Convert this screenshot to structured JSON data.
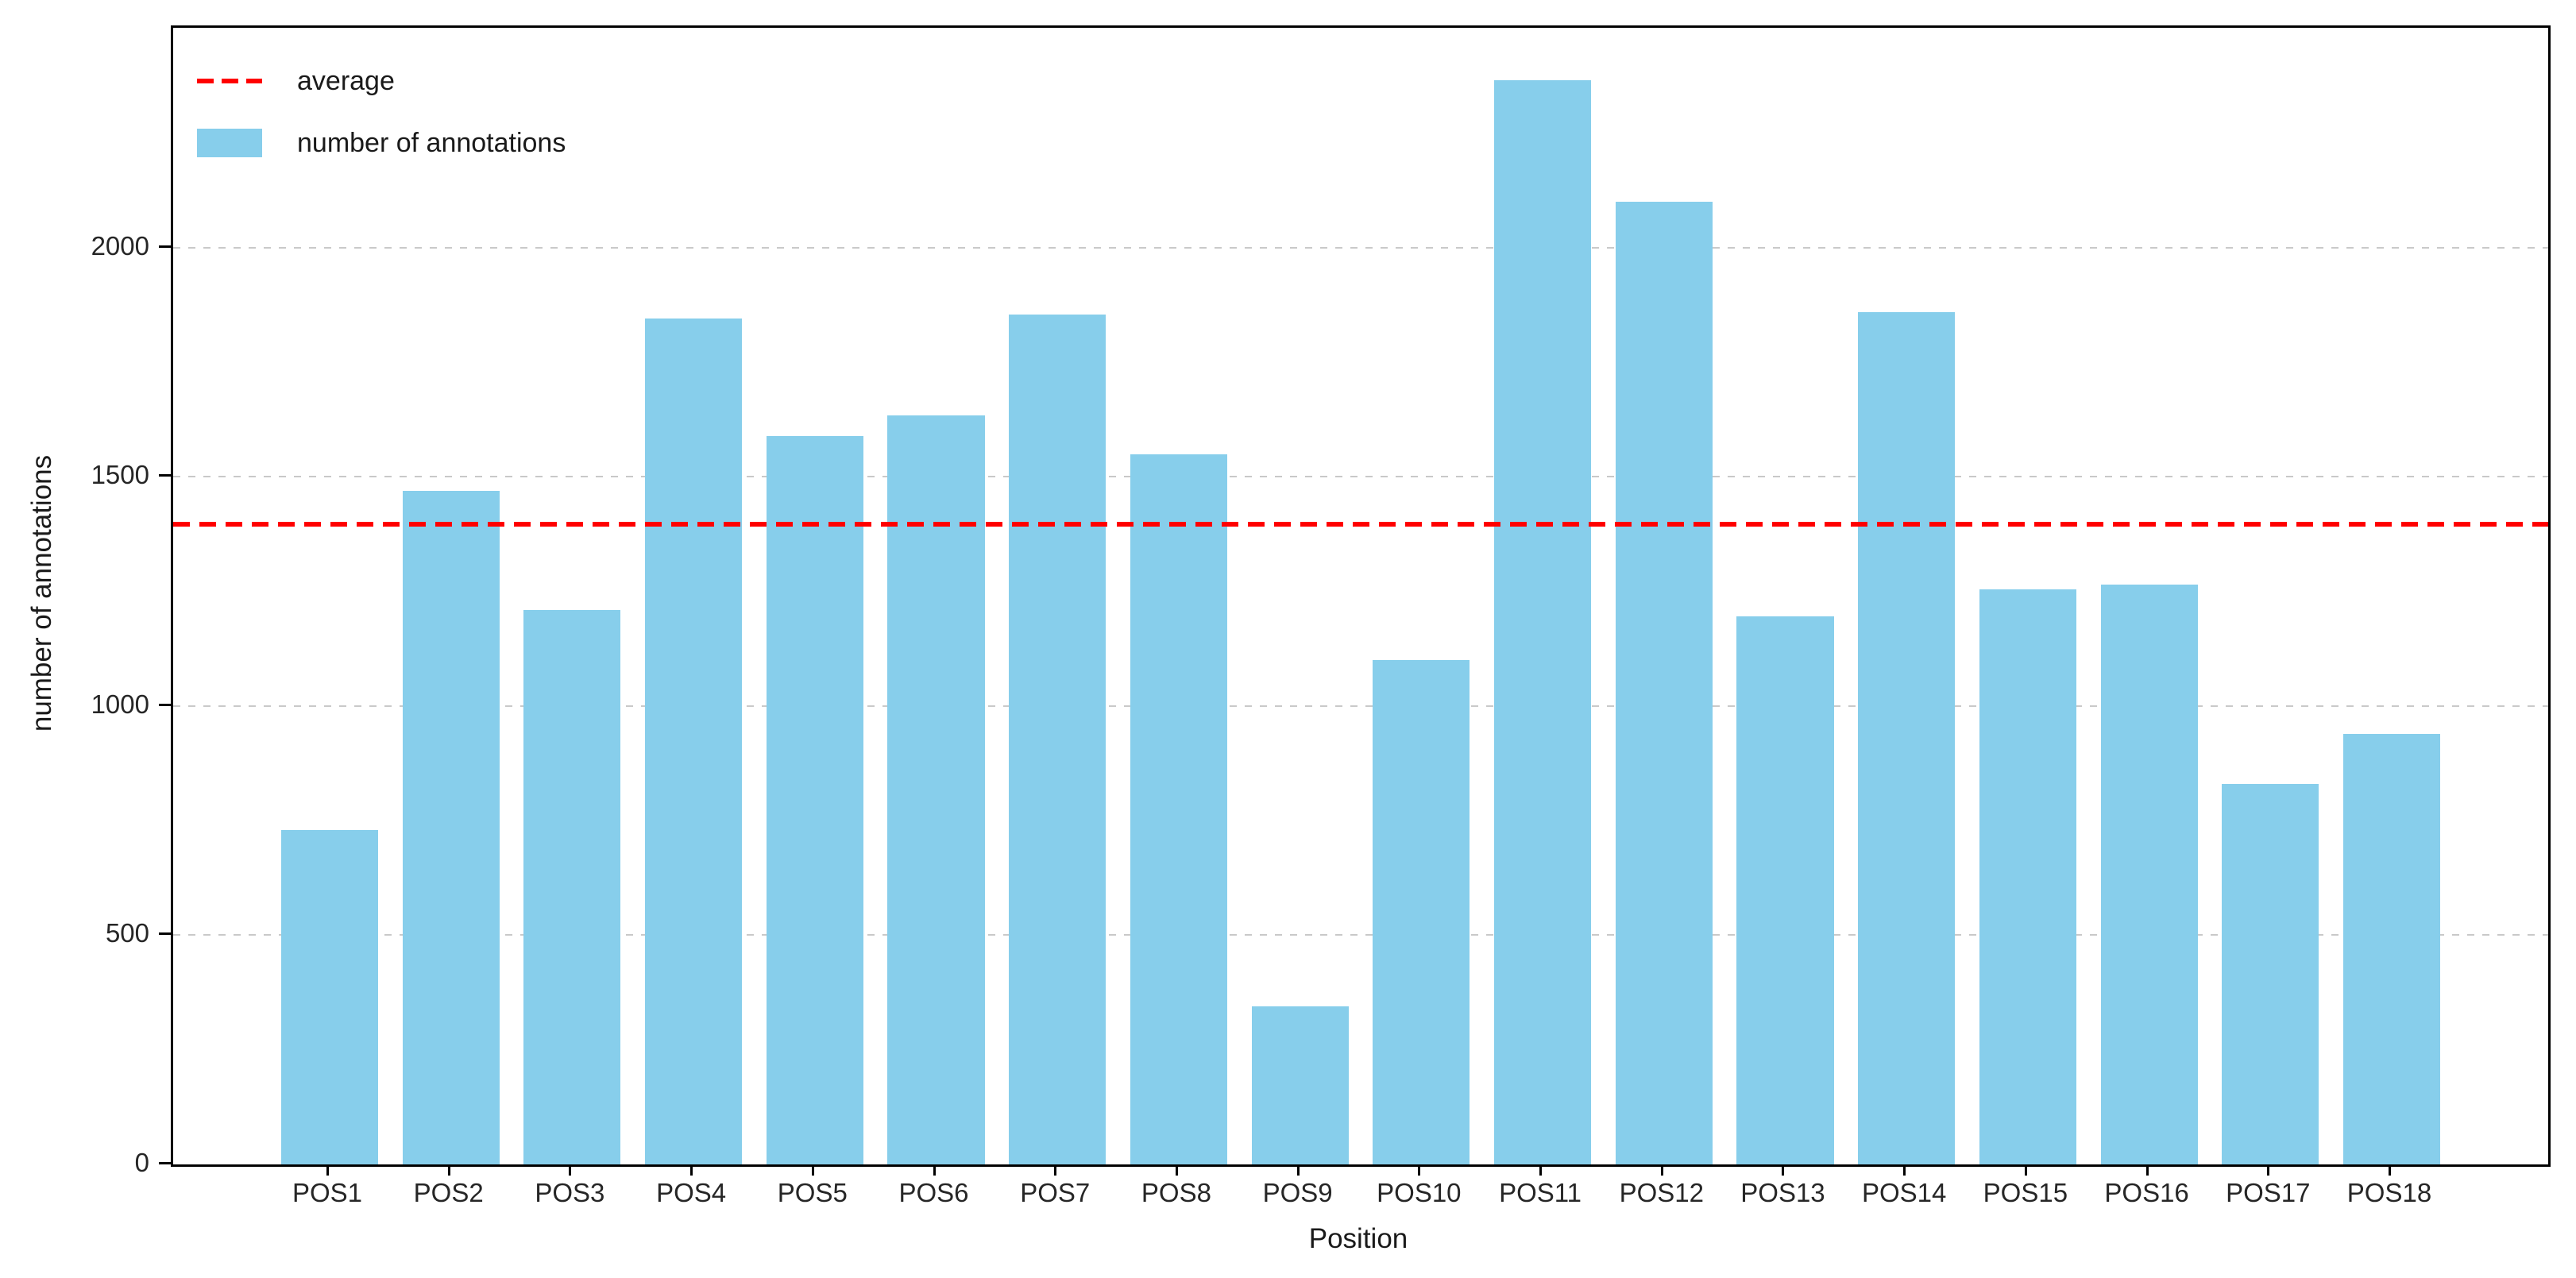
{
  "chart_data": {
    "type": "bar",
    "title": "",
    "xlabel": "Position",
    "ylabel": "number of annotations",
    "categories": [
      "POS1",
      "POS2",
      "POS3",
      "POS4",
      "POS5",
      "POS6",
      "POS7",
      "POS8",
      "POS9",
      "POS10",
      "POS11",
      "POS12",
      "POS13",
      "POS14",
      "POS15",
      "POS16",
      "POS17",
      "POS18"
    ],
    "values": [
      730,
      1470,
      1210,
      1845,
      1590,
      1635,
      1855,
      1550,
      345,
      1100,
      2365,
      2100,
      1195,
      1860,
      1255,
      1265,
      830,
      940
    ],
    "average": 1397,
    "yticks": [
      0,
      500,
      1000,
      1500,
      2000
    ],
    "ylim": [
      0,
      2480
    ],
    "grid": "horizontal-dashed",
    "legend": {
      "position": "upper-left",
      "items": [
        {
          "label": "average",
          "type": "dashed-line",
          "color": "#ff0000"
        },
        {
          "label": "number of annotations",
          "type": "patch",
          "color": "#87ceeb"
        }
      ]
    },
    "colors": {
      "bar": "#87ceeb",
      "average_line": "#ff0000",
      "grid": "#c9c9c9",
      "spine": "#000000",
      "text": "#1a1a1a"
    }
  }
}
